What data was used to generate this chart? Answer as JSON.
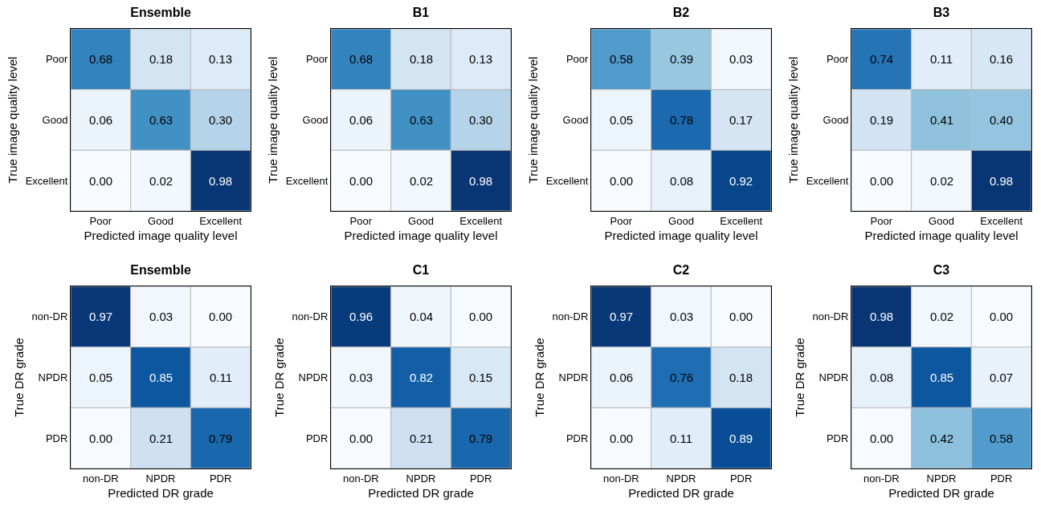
{
  "chart_data": [
    {
      "type": "heatmap",
      "title": "Ensemble",
      "xlabel": "Predicted image quality level",
      "ylabel": "True image quality level",
      "categories": [
        "Poor",
        "Good",
        "Excellent"
      ],
      "y_categories": [
        "Poor",
        "Good",
        "Excellent"
      ],
      "cells": [
        [
          0.68,
          0.18,
          0.13
        ],
        [
          0.06,
          0.63,
          0.3
        ],
        [
          0.0,
          0.02,
          0.98
        ]
      ],
      "cell_labels": [
        [
          "0.68",
          "0.18",
          "0.13"
        ],
        [
          "0.06",
          "0.63",
          "0.30"
        ],
        [
          "0.00",
          "0.02",
          "0.98"
        ]
      ]
    },
    {
      "type": "heatmap",
      "title": "B1",
      "xlabel": "Predicted image quality level",
      "ylabel": "True image quality level",
      "categories": [
        "Poor",
        "Good",
        "Excellent"
      ],
      "y_categories": [
        "Poor",
        "Good",
        "Excellent"
      ],
      "cells": [
        [
          0.68,
          0.18,
          0.13
        ],
        [
          0.06,
          0.63,
          0.3
        ],
        [
          0.0,
          0.02,
          0.98
        ]
      ],
      "cell_labels": [
        [
          "0.68",
          "0.18",
          "0.13"
        ],
        [
          "0.06",
          "0.63",
          "0.30"
        ],
        [
          "0.00",
          "0.02",
          "0.98"
        ]
      ]
    },
    {
      "type": "heatmap",
      "title": "B2",
      "xlabel": "Predicted image quality level",
      "ylabel": "True image quality level",
      "categories": [
        "Poor",
        "Good",
        "Excellent"
      ],
      "y_categories": [
        "Poor",
        "Good",
        "Excellent"
      ],
      "cells": [
        [
          0.58,
          0.39,
          0.03
        ],
        [
          0.05,
          0.78,
          0.17
        ],
        [
          0.0,
          0.08,
          0.92
        ]
      ],
      "cell_labels": [
        [
          "0.58",
          "0.39",
          "0.03"
        ],
        [
          "0.05",
          "0.78",
          "0.17"
        ],
        [
          "0.00",
          "0.08",
          "0.92"
        ]
      ]
    },
    {
      "type": "heatmap",
      "title": "B3",
      "xlabel": "Predicted image quality level",
      "ylabel": "True image quality level",
      "categories": [
        "Poor",
        "Good",
        "Excellent"
      ],
      "y_categories": [
        "Poor",
        "Good",
        "Excellent"
      ],
      "cells": [
        [
          0.74,
          0.11,
          0.16
        ],
        [
          0.19,
          0.41,
          0.4
        ],
        [
          0.0,
          0.02,
          0.98
        ]
      ],
      "cell_labels": [
        [
          "0.74",
          "0.11",
          "0.16"
        ],
        [
          "0.19",
          "0.41",
          "0.40"
        ],
        [
          "0.00",
          "0.02",
          "0.98"
        ]
      ]
    },
    {
      "type": "heatmap",
      "title": "Ensemble",
      "xlabel": "Predicted DR grade",
      "ylabel": "True DR grade",
      "categories": [
        "non-DR",
        "NPDR",
        "PDR"
      ],
      "y_categories": [
        "non-DR",
        "NPDR",
        "PDR"
      ],
      "cells": [
        [
          0.97,
          0.03,
          0.0
        ],
        [
          0.05,
          0.85,
          0.11
        ],
        [
          0.0,
          0.21,
          0.79
        ]
      ],
      "cell_labels": [
        [
          "0.97",
          "0.03",
          "0.00"
        ],
        [
          "0.05",
          "0.85",
          "0.11"
        ],
        [
          "0.00",
          "0.21",
          "0.79"
        ]
      ]
    },
    {
      "type": "heatmap",
      "title": "C1",
      "xlabel": "Predicted DR grade",
      "ylabel": "True DR grade",
      "categories": [
        "non-DR",
        "NPDR",
        "PDR"
      ],
      "y_categories": [
        "non-DR",
        "NPDR",
        "PDR"
      ],
      "cells": [
        [
          0.96,
          0.04,
          0.0
        ],
        [
          0.03,
          0.82,
          0.15
        ],
        [
          0.0,
          0.21,
          0.79
        ]
      ],
      "cell_labels": [
        [
          "0.96",
          "0.04",
          "0.00"
        ],
        [
          "0.03",
          "0.82",
          "0.15"
        ],
        [
          "0.00",
          "0.21",
          "0.79"
        ]
      ]
    },
    {
      "type": "heatmap",
      "title": "C2",
      "xlabel": "Predicted DR grade",
      "ylabel": "True DR grade",
      "categories": [
        "non-DR",
        "NPDR",
        "PDR"
      ],
      "y_categories": [
        "non-DR",
        "NPDR",
        "PDR"
      ],
      "cells": [
        [
          0.97,
          0.03,
          0.0
        ],
        [
          0.06,
          0.76,
          0.18
        ],
        [
          0.0,
          0.11,
          0.89
        ]
      ],
      "cell_labels": [
        [
          "0.97",
          "0.03",
          "0.00"
        ],
        [
          "0.06",
          "0.76",
          "0.18"
        ],
        [
          "0.00",
          "0.11",
          "0.89"
        ]
      ]
    },
    {
      "type": "heatmap",
      "title": "C3",
      "xlabel": "Predicted DR grade",
      "ylabel": "True DR grade",
      "categories": [
        "non-DR",
        "NPDR",
        "PDR"
      ],
      "y_categories": [
        "non-DR",
        "NPDR",
        "PDR"
      ],
      "cells": [
        [
          0.98,
          0.02,
          0.0
        ],
        [
          0.08,
          0.85,
          0.07
        ],
        [
          0.0,
          0.42,
          0.58
        ]
      ],
      "cell_labels": [
        [
          "0.98",
          "0.02",
          "0.00"
        ],
        [
          "0.08",
          "0.85",
          "0.07"
        ],
        [
          "0.00",
          "0.42",
          "0.58"
        ]
      ]
    }
  ]
}
